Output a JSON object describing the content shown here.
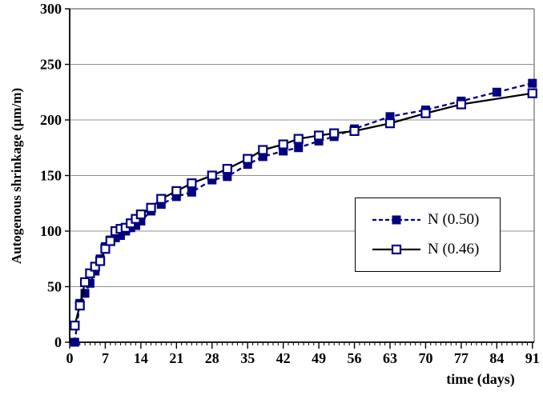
{
  "chart_data": {
    "type": "line",
    "title": "",
    "xlabel": "time (days)",
    "ylabel": "Autogenous shrinkage (μm/m)",
    "xlim": [
      0,
      91.35
    ],
    "ylim": [
      0,
      300
    ],
    "xticks": [
      0,
      7,
      14,
      21,
      28,
      35,
      42,
      49,
      56,
      63,
      70,
      77,
      84,
      91
    ],
    "yticks": [
      0,
      50,
      100,
      150,
      200,
      250,
      300
    ],
    "x_minor_tick_step": 1,
    "grid": "horizontal",
    "legend_position": "middle-right",
    "x": [
      1,
      2,
      3,
      4,
      5,
      6,
      7,
      8,
      9,
      10,
      11,
      12,
      13,
      14,
      16,
      18,
      21,
      24,
      28,
      31,
      35,
      38,
      42,
      45,
      49,
      52,
      56,
      63,
      70,
      77,
      84,
      91
    ],
    "series": [
      {
        "name": "N (0.50)",
        "line_style": "dashed",
        "line_color": "#000080",
        "marker": "filled-square",
        "marker_color": "#000080",
        "values": [
          0,
          35,
          44,
          53,
          64,
          75,
          86,
          92,
          94,
          96,
          100,
          103,
          105,
          109,
          118,
          124,
          131,
          135,
          146,
          149,
          160,
          167,
          172,
          175,
          181,
          185,
          192,
          203,
          209,
          217,
          225,
          233
        ]
      },
      {
        "name": "N (0.46)",
        "line_style": "solid",
        "line_color": "#000000",
        "marker": "open-square",
        "marker_color": "#000080",
        "values": [
          15,
          33,
          54,
          62,
          68,
          73,
          84,
          91,
          100,
          102,
          103,
          107,
          111,
          115,
          121,
          129,
          136,
          143,
          150,
          156,
          165,
          173,
          178,
          183,
          186,
          188,
          190,
          197,
          206,
          214,
          null,
          224
        ]
      }
    ],
    "colors": {
      "grid": "#909090",
      "border": "#808080",
      "axis": "#000000",
      "navy": "#000080",
      "black": "#000000",
      "background": "#ffffff"
    }
  }
}
